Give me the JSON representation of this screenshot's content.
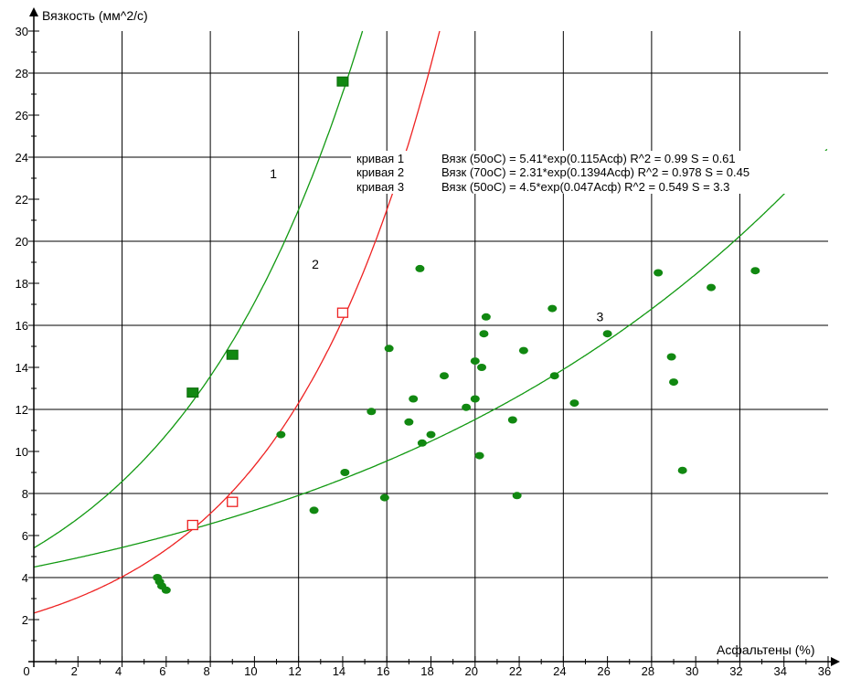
{
  "chart_data": {
    "type": "scatter",
    "xlabel": "Асфальтены (%)",
    "ylabel": "Вязкость (мм^2/с)",
    "xlim": [
      0,
      36
    ],
    "ylim": [
      0,
      30
    ],
    "x_ticks": [
      0,
      2,
      4,
      6,
      8,
      10,
      12,
      14,
      16,
      18,
      20,
      22,
      24,
      26,
      28,
      30,
      32,
      34,
      36
    ],
    "y_ticks": [
      2,
      4,
      6,
      8,
      10,
      12,
      14,
      16,
      18,
      20,
      22,
      24,
      26,
      28,
      30
    ],
    "grid": true,
    "curves": [
      {
        "name": "1",
        "a": 5.41,
        "b": 0.115,
        "color": "#119911"
      },
      {
        "name": "2",
        "a": 2.31,
        "b": 0.1394,
        "color": "#ee2222"
      },
      {
        "name": "3",
        "a": 4.5,
        "b": 0.047,
        "color": "#119911"
      }
    ],
    "legend": [
      {
        "label": "кривая 1",
        "text": "Вязк (50оС) = 5.41*exp(0.115Асф)  R^2 = 0.99  S = 0.61"
      },
      {
        "label": "кривая 2",
        "text": "Вязк (70оС) = 2.31*exp(0.1394Асф)  R^2 = 0.978  S = 0.45"
      },
      {
        "label": "кривая 3",
        "text": "Вязк (50оС) = 4.5*exp(0.047Асф)  R^2 = 0.549  S = 3.3"
      }
    ],
    "series": [
      {
        "name": "1",
        "marker": "filled-square",
        "color": "#118811",
        "points": [
          [
            7.2,
            12.8
          ],
          [
            9.0,
            14.6
          ],
          [
            14.0,
            27.6
          ]
        ]
      },
      {
        "name": "2",
        "marker": "open-square",
        "color": "#ee2222",
        "points": [
          [
            7.2,
            6.5
          ],
          [
            9.0,
            7.6
          ],
          [
            14.0,
            16.6
          ]
        ]
      },
      {
        "name": "3",
        "marker": "filled-circle",
        "color": "#118811",
        "points": [
          [
            5.6,
            4.0
          ],
          [
            5.7,
            3.8
          ],
          [
            5.8,
            3.6
          ],
          [
            6.0,
            3.4
          ],
          [
            11.2,
            10.8
          ],
          [
            12.7,
            7.2
          ],
          [
            14.1,
            9.0
          ],
          [
            15.3,
            11.9
          ],
          [
            15.9,
            7.8
          ],
          [
            16.1,
            14.9
          ],
          [
            17.0,
            11.4
          ],
          [
            17.2,
            12.5
          ],
          [
            17.5,
            18.7
          ],
          [
            17.6,
            10.4
          ],
          [
            18.0,
            10.8
          ],
          [
            18.6,
            13.6
          ],
          [
            19.6,
            12.1
          ],
          [
            20.0,
            14.3
          ],
          [
            20.0,
            12.5
          ],
          [
            20.2,
            9.8
          ],
          [
            20.3,
            14.0
          ],
          [
            20.4,
            15.6
          ],
          [
            20.5,
            16.4
          ],
          [
            21.7,
            11.5
          ],
          [
            21.9,
            7.9
          ],
          [
            22.2,
            14.8
          ],
          [
            23.5,
            16.8
          ],
          [
            23.6,
            13.6
          ],
          [
            24.5,
            12.3
          ],
          [
            26.0,
            15.6
          ],
          [
            28.3,
            18.5
          ],
          [
            28.9,
            14.5
          ],
          [
            29.0,
            13.3
          ],
          [
            29.4,
            9.1
          ],
          [
            30.7,
            17.8
          ],
          [
            32.7,
            18.6
          ]
        ]
      }
    ],
    "curve_labels": [
      {
        "text": "1",
        "x": 10.7,
        "y": 23.0
      },
      {
        "text": "2",
        "x": 12.6,
        "y": 18.7
      },
      {
        "text": "3",
        "x": 25.5,
        "y": 16.2
      }
    ]
  }
}
